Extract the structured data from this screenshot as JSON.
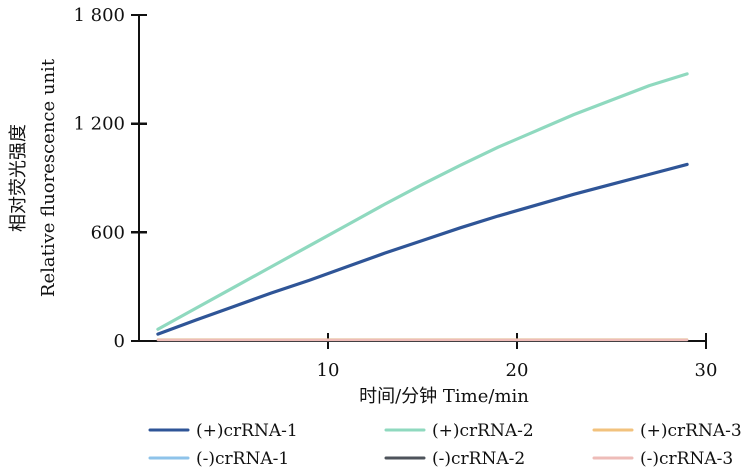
{
  "chart_data": {
    "type": "line",
    "title": "",
    "xlabel": "时间/分钟  Time/min",
    "ylabel_lines": [
      "相对荧光强度",
      "Relative fluorescence unit"
    ],
    "xlim": [
      0,
      30
    ],
    "ylim": [
      0,
      1800
    ],
    "xticks": [
      10,
      20,
      30
    ],
    "yticks": [
      0,
      600,
      1200,
      1800
    ],
    "xtick_labels": [
      "10",
      "20",
      "30"
    ],
    "ytick_labels": [
      "0",
      "600",
      "1 200",
      "1 800"
    ],
    "grid": false,
    "legend_position": "bottom",
    "series": [
      {
        "name": "(+)crRNA-1",
        "color": "#2f5597",
        "x": [
          1,
          3,
          5,
          7,
          9,
          11,
          13,
          15,
          17,
          19,
          21,
          23,
          25,
          27,
          29
        ],
        "values": [
          38,
          115,
          190,
          265,
          335,
          410,
          485,
          555,
          625,
          690,
          750,
          810,
          865,
          920,
          975
        ]
      },
      {
        "name": "(+)crRNA-2",
        "color": "#8fd9bf",
        "x": [
          1,
          3,
          5,
          7,
          9,
          11,
          13,
          15,
          17,
          19,
          21,
          23,
          25,
          27,
          29
        ],
        "values": [
          65,
          180,
          295,
          410,
          525,
          640,
          755,
          865,
          970,
          1070,
          1160,
          1250,
          1330,
          1410,
          1475
        ]
      },
      {
        "name": "(+)crRNA-3",
        "color": "#f2c27d",
        "x": [
          1,
          29
        ],
        "values": [
          8,
          8
        ]
      },
      {
        "name": "(-)crRNA-1",
        "color": "#8ec3ea",
        "x": [
          1,
          29
        ],
        "values": [
          5,
          5
        ]
      },
      {
        "name": "(-)crRNA-2",
        "color": "#4e535b",
        "x": [
          1,
          29
        ],
        "values": [
          4,
          4
        ]
      },
      {
        "name": "(-)crRNA-3",
        "color": "#eebcb8",
        "x": [
          1,
          29
        ],
        "values": [
          6,
          6
        ]
      }
    ]
  }
}
